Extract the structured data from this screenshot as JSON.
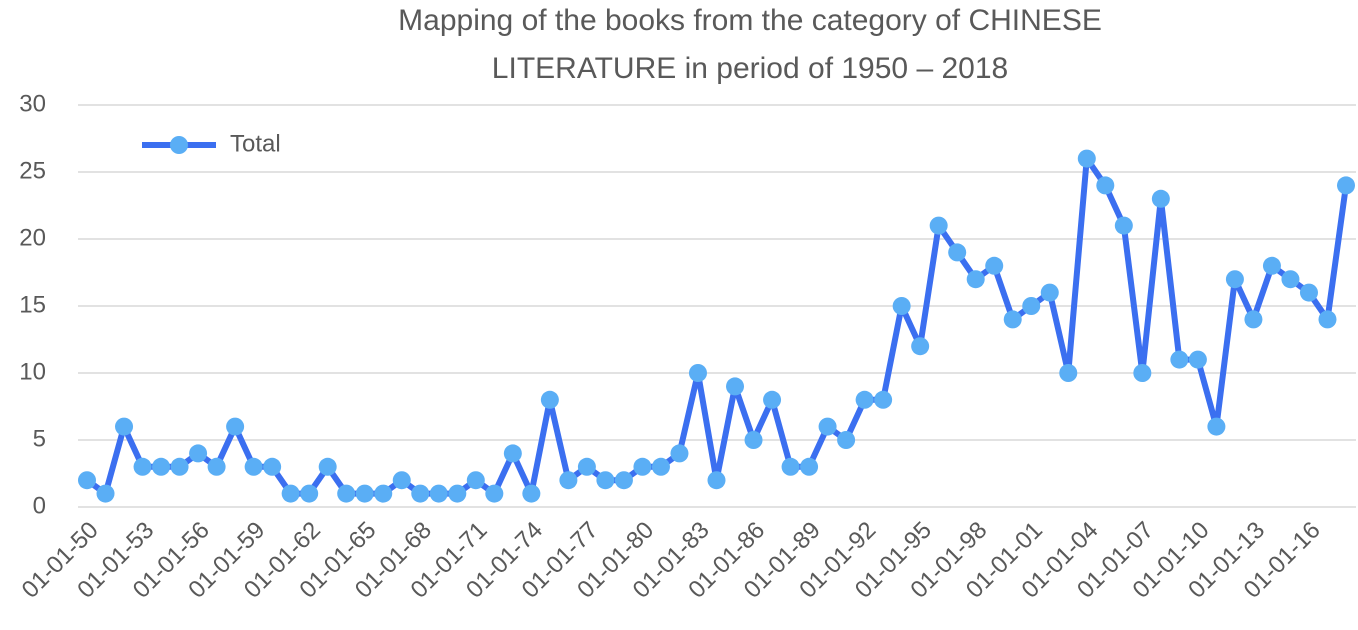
{
  "chart_data": {
    "type": "line",
    "title": [
      "Mapping of the books from the category of CHINESE",
      "LITERATURE in period of 1950 – 2018"
    ],
    "categories": [
      "01-01-50",
      null,
      null,
      "01-01-53",
      null,
      null,
      "01-01-56",
      null,
      null,
      "01-01-59",
      null,
      null,
      "01-01-62",
      null,
      null,
      "01-01-65",
      null,
      null,
      "01-01-68",
      null,
      null,
      "01-01-71",
      null,
      null,
      "01-01-74",
      null,
      null,
      "01-01-77",
      null,
      null,
      "01-01-80",
      null,
      null,
      "01-01-83",
      null,
      null,
      "01-01-86",
      null,
      null,
      "01-01-89",
      null,
      null,
      "01-01-92",
      null,
      null,
      "01-01-95",
      null,
      null,
      "01-01-98",
      null,
      null,
      "01-01-01",
      null,
      null,
      "01-01-04",
      null,
      null,
      "01-01-07",
      null,
      null,
      "01-01-10",
      null,
      null,
      "01-01-13",
      null,
      null,
      "01-01-16",
      null,
      null
    ],
    "series": [
      {
        "name": "Total",
        "color": "#3b6ff0",
        "marker_color": "#5aaef5",
        "values": [
          2,
          1,
          6,
          3,
          3,
          3,
          4,
          3,
          6,
          3,
          3,
          1,
          1,
          3,
          1,
          1,
          1,
          2,
          1,
          1,
          1,
          2,
          1,
          4,
          1,
          8,
          2,
          3,
          2,
          2,
          3,
          3,
          4,
          10,
          2,
          9,
          5,
          8,
          3,
          3,
          6,
          5,
          8,
          8,
          15,
          12,
          21,
          19,
          17,
          18,
          14,
          15,
          16,
          10,
          26,
          24,
          21,
          10,
          23,
          11,
          11,
          6,
          17,
          14,
          18,
          17,
          16,
          14,
          24
        ]
      }
    ],
    "ylim": [
      0,
      30
    ],
    "yticks": [
      0,
      5,
      10,
      15,
      20,
      25,
      30
    ],
    "grid": true,
    "legend": "top-left"
  }
}
